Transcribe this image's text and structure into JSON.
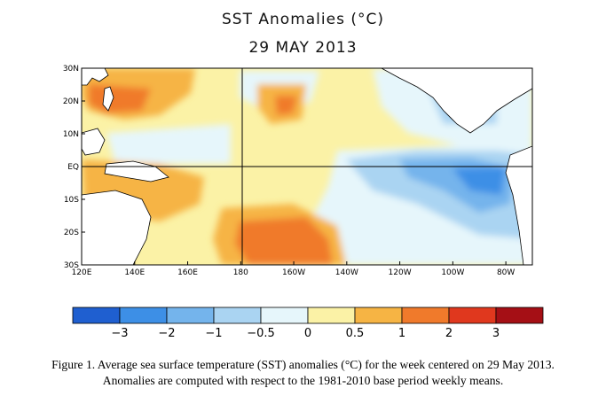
{
  "title": "SST Anomalies (°C)",
  "date": "29 MAY 2013",
  "map": {
    "lat_labels": [
      "30N",
      "20N",
      "10N",
      "EQ",
      "10S",
      "20S",
      "30S"
    ],
    "lon_labels": [
      "120E",
      "140E",
      "160E",
      "180",
      "160W",
      "140W",
      "120W",
      "100W",
      "80W"
    ],
    "extent": {
      "lon_east_start": 120,
      "lon_east_end": 290,
      "lat_min": -30,
      "lat_max": 30
    }
  },
  "colorbar": {
    "colors": [
      "#1f5fd0",
      "#3d8fe6",
      "#74b4ec",
      "#aad4f2",
      "#e6f6fb",
      "#fbf2a6",
      "#f6b444",
      "#f07a2b",
      "#e0381e",
      "#a50f15"
    ],
    "tick_labels": [
      "−3",
      "−2",
      "−1",
      "−0.5",
      "0",
      "0.5",
      "1",
      "2",
      "3"
    ]
  },
  "caption": {
    "line1": "Figure 1. Average sea surface temperature (SST) anomalies (°C) for the week centered on 29 May 2013.",
    "line2": "Anomalies are computed with respect to the 1981-2010 base period weekly means."
  }
}
